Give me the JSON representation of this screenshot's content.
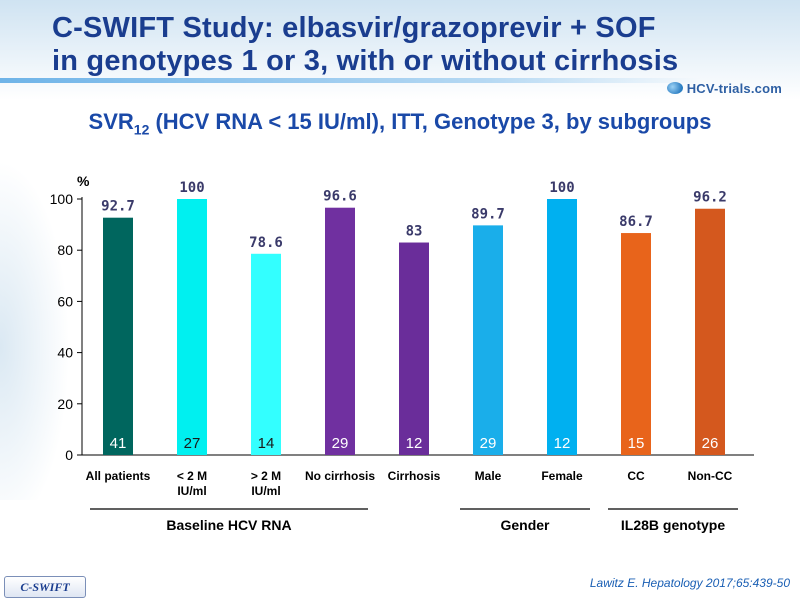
{
  "slide": {
    "title_line1": "C-SWIFT Study: elbasvir/grazoprevir + SOF",
    "title_line2": "in genotypes 1 or 3, with or without cirrhosis",
    "logo_text": "HCV-trials.com",
    "subtitle_prefix": "SVR",
    "subtitle_sub": "12",
    "subtitle_rest": " (HCV RNA < 15 IU/ml), ITT, Genotype 3, by subgroups",
    "footer_tag": "C-SWIFT",
    "citation": "Lawitz  E. Hepatology 2017;65:439-50"
  },
  "chart_data": {
    "type": "bar",
    "ylabel": "%",
    "ylim": [
      0,
      100
    ],
    "yticks": [
      0,
      20,
      40,
      60,
      80,
      100
    ],
    "grid": false,
    "categories": [
      {
        "line1": "All patients",
        "line2": ""
      },
      {
        "line1": "< 2 M",
        "line2": "IU/ml"
      },
      {
        "line1": "> 2 M",
        "line2": "IU/ml"
      },
      {
        "line1": "No cirrhosis",
        "line2": ""
      },
      {
        "line1": "Cirrhosis",
        "line2": ""
      },
      {
        "line1": "Male",
        "line2": ""
      },
      {
        "line1": "Female",
        "line2": ""
      },
      {
        "line1": "CC",
        "line2": ""
      },
      {
        "line1": "Non-CC",
        "line2": ""
      }
    ],
    "values": [
      92.7,
      100,
      78.6,
      96.6,
      83,
      89.7,
      100,
      86.7,
      96.2
    ],
    "value_labels": [
      "92.7",
      "100",
      "78.6",
      "96.6",
      "83",
      "89.7",
      "100",
      "86.7",
      "96.2"
    ],
    "counts": [
      "41",
      "27",
      "14",
      "29",
      "12",
      "29",
      "12",
      "15",
      "26"
    ],
    "colors": [
      "#00665e",
      "#00f0f0",
      "#33ffff",
      "#7030a0",
      "#6a2d9a",
      "#1aaeea",
      "#00b0f0",
      "#e8641b",
      "#d4581e"
    ],
    "count_label_colors": [
      "#ffffff",
      "#1a1a1a",
      "#1a1a1a",
      "#ffffff",
      "#ffffff",
      "#ffffff",
      "#ffffff",
      "#ffffff",
      "#ffffff"
    ],
    "value_label_color": "#3a3a6a",
    "groups": [
      {
        "label": "Baseline HCV RNA",
        "from": 0,
        "to": 3
      },
      {
        "label": "Gender",
        "from": 5,
        "to": 6
      },
      {
        "label": "IL28B genotype",
        "from": 7,
        "to": 8
      }
    ]
  }
}
